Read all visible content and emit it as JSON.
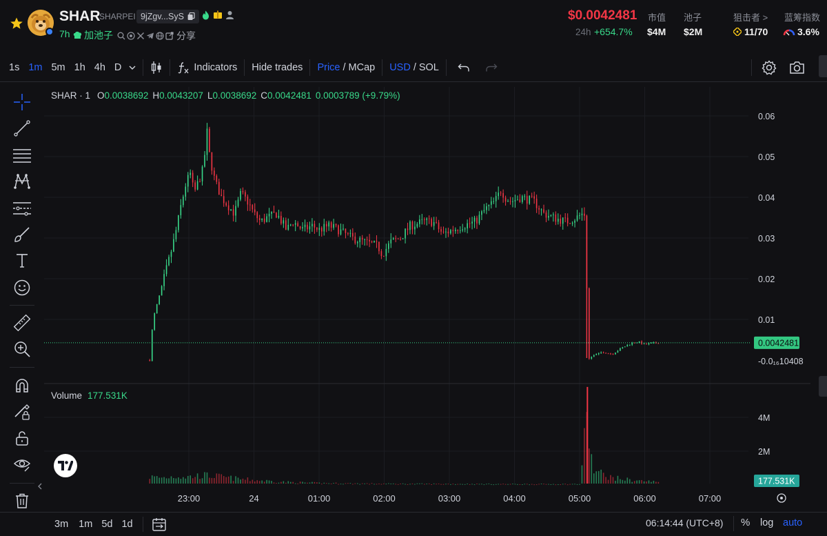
{
  "header": {
    "symbol": "SHAR",
    "token_name": "SHARPEI",
    "address": "9jZgv...SyS",
    "age": "7h",
    "pool_label": "加池子",
    "share_label": "分享",
    "price": "$0.0042481",
    "change_label": "24h",
    "change_value": "+654.7%",
    "stats": [
      {
        "label": "市值",
        "value": "$4M"
      },
      {
        "label": "池子",
        "value": "$2M"
      }
    ],
    "sniper_label": "狙击者 >",
    "sniper_value": "11/70",
    "bluechip_label": "蓝筹指数",
    "bluechip_value": "3.6%",
    "colors": {
      "up": "#39d98a",
      "down": "#f23645",
      "accent": "#2962ff"
    }
  },
  "toolbar": {
    "timeframes": [
      "1s",
      "1m",
      "5m",
      "1h",
      "4h",
      "D"
    ],
    "active_timeframe": "1m",
    "indicators_label": "Indicators",
    "hide_trades_label": "Hide trades",
    "price_label": "Price",
    "mcap_label": "MCap",
    "usd_label": "USD",
    "sol_label": "SOL",
    "slash": "/"
  },
  "legend": {
    "title": "SHAR · 1",
    "o_label": "O",
    "o": "0.0038692",
    "h_label": "H",
    "h": "0.0043207",
    "l_label": "L",
    "l": "0.0038692",
    "c_label": "C",
    "c": "0.0042481",
    "change": "0.0003789 (+9.79%)"
  },
  "volume_legend": {
    "label": "Volume",
    "value": "177.531K"
  },
  "chart_data": {
    "type": "candlestick",
    "price_axis_ticks": [
      "0.06",
      "0.05",
      "0.04",
      "0.03",
      "0.02",
      "0.01",
      "-0.0₁₆10408"
    ],
    "price_axis_values": [
      0.06,
      0.05,
      0.04,
      0.03,
      0.02,
      0.01
    ],
    "price_ylim": [
      -0.0004,
      0.062
    ],
    "last_price_label": "0.0042481",
    "last_price": 0.0042481,
    "volume_axis_ticks": [
      "4M",
      "2M"
    ],
    "volume_axis_values": [
      4000000,
      2000000
    ],
    "volume_ylim": [
      0,
      6000000
    ],
    "last_volume_label": "177.531K",
    "time_ticks": [
      "23:00",
      "24",
      "01:00",
      "02:00",
      "03:00",
      "04:00",
      "05:00",
      "06:00",
      "07:00"
    ],
    "price_path": [
      [
        22.4,
        0.0
      ],
      [
        22.45,
        0.01
      ],
      [
        22.55,
        0.016
      ],
      [
        22.65,
        0.022
      ],
      [
        22.75,
        0.028
      ],
      [
        22.82,
        0.033
      ],
      [
        22.88,
        0.038
      ],
      [
        22.95,
        0.043
      ],
      [
        23.02,
        0.046
      ],
      [
        23.08,
        0.041
      ],
      [
        23.15,
        0.044
      ],
      [
        23.22,
        0.047
      ],
      [
        23.28,
        0.056
      ],
      [
        23.32,
        0.05
      ],
      [
        23.4,
        0.044
      ],
      [
        23.5,
        0.04
      ],
      [
        23.6,
        0.038
      ],
      [
        23.7,
        0.036
      ],
      [
        23.8,
        0.041
      ],
      [
        23.9,
        0.039
      ],
      [
        24.0,
        0.036
      ],
      [
        24.1,
        0.034
      ],
      [
        24.2,
        0.035
      ],
      [
        24.35,
        0.036
      ],
      [
        24.5,
        0.032
      ],
      [
        24.6,
        0.034
      ],
      [
        24.75,
        0.032
      ],
      [
        24.9,
        0.033
      ],
      [
        25.0,
        0.032
      ],
      [
        25.15,
        0.033
      ],
      [
        25.3,
        0.032
      ],
      [
        25.5,
        0.03
      ],
      [
        25.7,
        0.029
      ],
      [
        25.9,
        0.028
      ],
      [
        25.97,
        0.026
      ],
      [
        26.1,
        0.029
      ],
      [
        26.25,
        0.03
      ],
      [
        26.4,
        0.033
      ],
      [
        26.6,
        0.034
      ],
      [
        26.75,
        0.034
      ],
      [
        26.9,
        0.031
      ],
      [
        27.05,
        0.032
      ],
      [
        27.2,
        0.033
      ],
      [
        27.4,
        0.034
      ],
      [
        27.55,
        0.037
      ],
      [
        27.7,
        0.039
      ],
      [
        27.8,
        0.042
      ],
      [
        27.85,
        0.04
      ],
      [
        27.95,
        0.039
      ],
      [
        28.1,
        0.04
      ],
      [
        28.3,
        0.039
      ],
      [
        28.45,
        0.036
      ],
      [
        28.6,
        0.035
      ],
      [
        28.8,
        0.034
      ],
      [
        28.95,
        0.035
      ],
      [
        29.05,
        0.036
      ],
      [
        29.1,
        0.0355
      ],
      [
        29.12,
        0.0
      ],
      [
        29.2,
        0.001
      ],
      [
        29.35,
        0.002
      ],
      [
        29.5,
        0.0015
      ],
      [
        29.65,
        0.003
      ],
      [
        29.8,
        0.0042
      ],
      [
        29.9,
        0.0045
      ],
      [
        30.0,
        0.0038
      ],
      [
        30.1,
        0.0041
      ],
      [
        30.22,
        0.0042481
      ]
    ],
    "volume_profile": [
      [
        22.4,
        0.5
      ],
      [
        22.6,
        0.45
      ],
      [
        22.8,
        0.55
      ],
      [
        23.0,
        0.5
      ],
      [
        23.2,
        0.6
      ],
      [
        23.4,
        0.55
      ],
      [
        23.7,
        0.4
      ],
      [
        24.0,
        0.3
      ],
      [
        24.5,
        0.18
      ],
      [
        25.0,
        0.12
      ],
      [
        26.0,
        0.08
      ],
      [
        27.0,
        0.07
      ],
      [
        28.0,
        0.06
      ],
      [
        29.0,
        0.06
      ],
      [
        29.12,
        4.2
      ],
      [
        29.2,
        0.9
      ],
      [
        29.5,
        0.45
      ],
      [
        29.8,
        0.3
      ],
      [
        30.22,
        0.18
      ]
    ]
  },
  "bottombar": {
    "ranges": [
      "3m",
      "1m",
      "5d",
      "1d"
    ],
    "clock": "06:14:44 (UTC+8)",
    "percent_label": "%",
    "log_label": "log",
    "auto_label": "auto"
  }
}
